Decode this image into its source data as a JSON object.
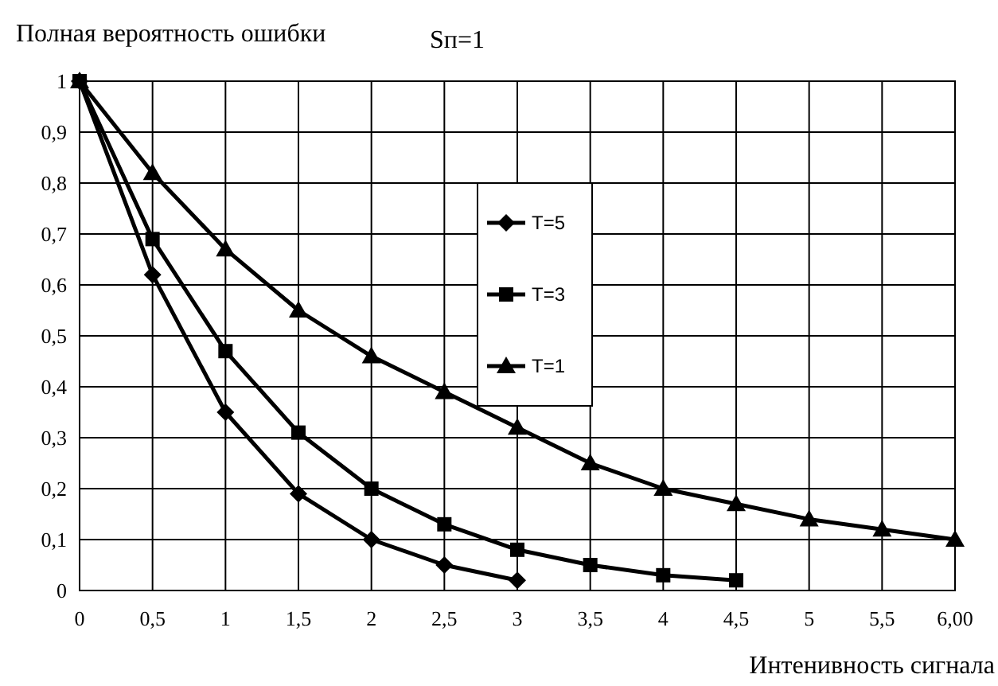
{
  "chart_data": {
    "type": "line",
    "ylabel": "Полная вероятность ошибки",
    "annotations": [
      "Sп=1"
    ],
    "xlabel": "Интенивность сигнала",
    "xlim": [
      0,
      6
    ],
    "xticks": [
      0,
      {
        "value": 0.5,
        "label": "0,5"
      },
      1,
      {
        "value": 1.5,
        "label": "1,5"
      },
      2,
      {
        "value": 2.5,
        "label": "2,5"
      },
      3,
      {
        "value": 3.5,
        "label": "3,5"
      },
      4,
      {
        "value": 4.5,
        "label": "4,5"
      },
      5,
      {
        "value": 5.5,
        "label": "5,5"
      },
      {
        "value": 6,
        "label": "6,00"
      }
    ],
    "ylim": [
      0,
      1
    ],
    "yticks": [
      0,
      {
        "value": 0.1,
        "label": "0,1"
      },
      {
        "value": 0.2,
        "label": "0,2"
      },
      {
        "value": 0.3,
        "label": "0,3"
      },
      {
        "value": 0.4,
        "label": "0,4"
      },
      {
        "value": 0.5,
        "label": "0,5"
      },
      {
        "value": 0.6,
        "label": "0,6"
      },
      {
        "value": 0.7,
        "label": "0,7"
      },
      {
        "value": 0.8,
        "label": "0,8"
      },
      {
        "value": 0.9,
        "label": "0,9"
      },
      1
    ],
    "grid": true,
    "legend": "center",
    "line_style": "solid",
    "series": [
      {
        "name": "T=5",
        "color": "#000000",
        "marker": "diamond",
        "x": [
          0,
          0.5,
          1,
          1.5,
          2,
          2.5,
          3
        ],
        "values": [
          1,
          0.62,
          0.35,
          0.19,
          0.1,
          0.05,
          0.02
        ]
      },
      {
        "name": "T=3",
        "color": "#000000",
        "marker": "square",
        "x": [
          0,
          0.5,
          1,
          1.5,
          2,
          2.5,
          3,
          3.5,
          4,
          4.5
        ],
        "values": [
          1,
          0.69,
          0.47,
          0.31,
          0.2,
          0.13,
          0.08,
          0.05,
          0.03,
          0.02
        ]
      },
      {
        "name": "T=1",
        "color": "#000000",
        "marker": "triangle",
        "x": [
          0,
          0.5,
          1,
          1.5,
          2,
          2.5,
          3,
          3.5,
          4,
          4.5,
          5,
          5.5,
          6
        ],
        "values": [
          1,
          0.82,
          0.67,
          0.55,
          0.46,
          0.39,
          0.32,
          0.25,
          0.2,
          0.17,
          0.14,
          0.12,
          0.1
        ]
      }
    ]
  }
}
